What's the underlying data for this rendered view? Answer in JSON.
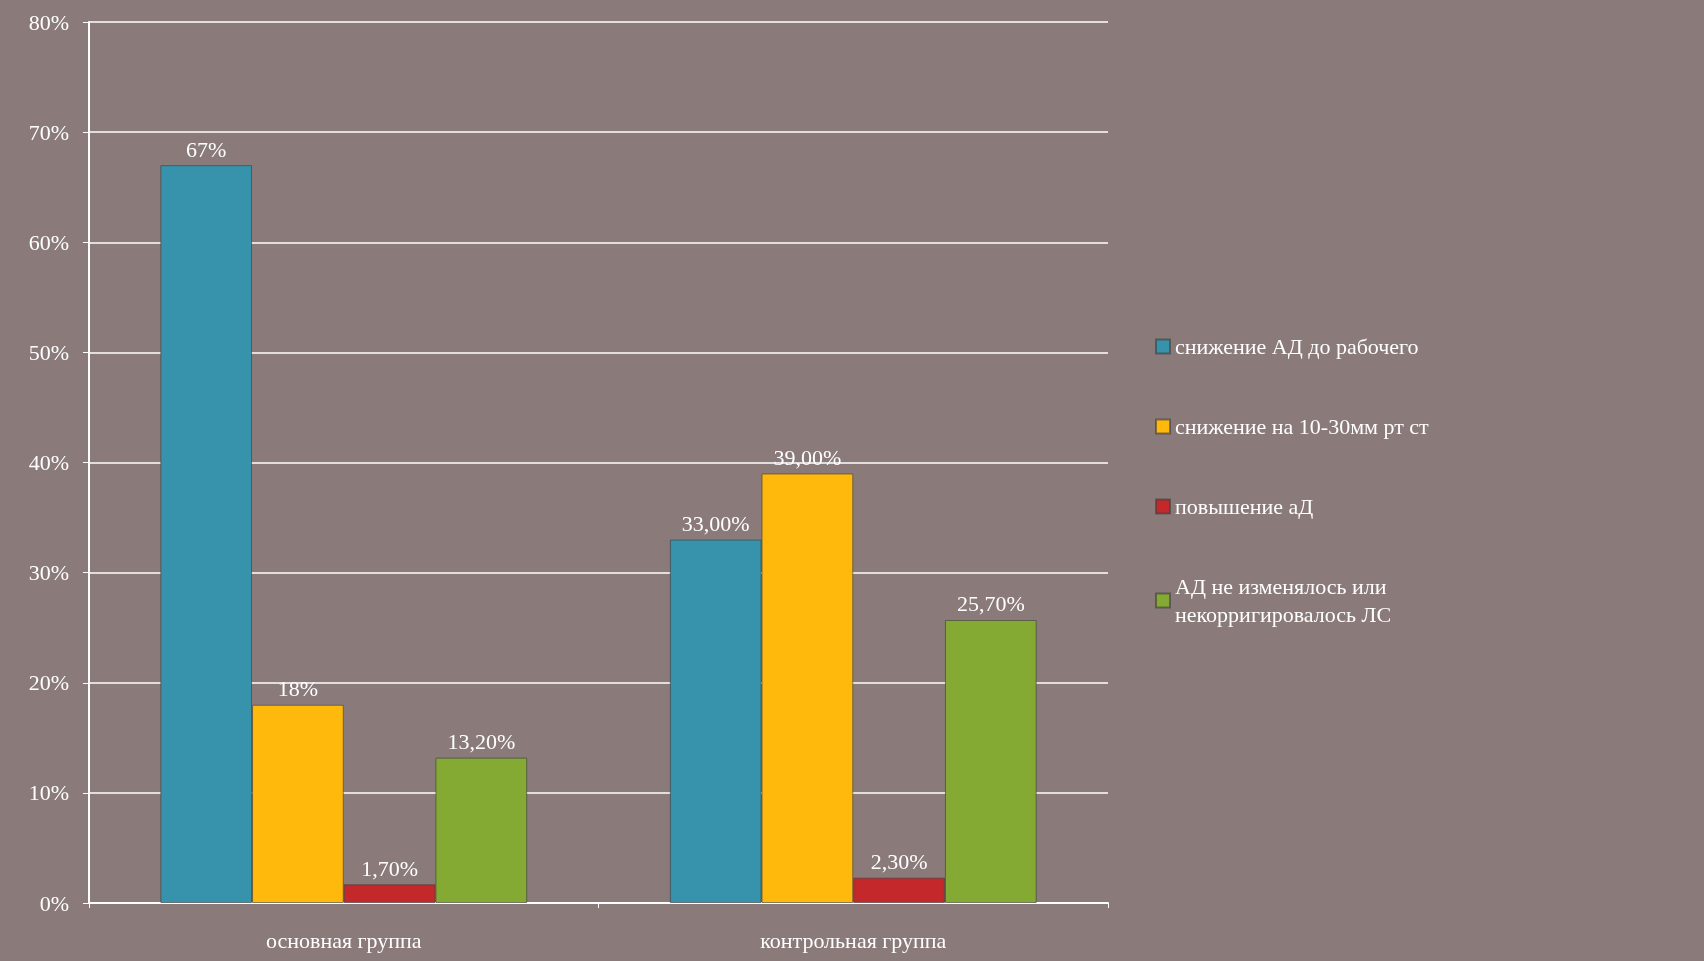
{
  "chart_data": {
    "type": "bar",
    "categories": [
      "основная группа",
      "контрольная группа"
    ],
    "series": [
      {
        "name": "снижение АД до рабочего",
        "color": "#3793ab",
        "values": [
          67,
          33
        ],
        "value_labels": [
          "67%",
          "33,00%"
        ]
      },
      {
        "name": "снижение на 10-30мм рт ст",
        "color": "#ffb80c",
        "values": [
          18,
          39
        ],
        "value_labels": [
          "18%",
          "39,00%"
        ]
      },
      {
        "name": "повышение аД",
        "color": "#c5282a",
        "values": [
          1.7,
          2.3
        ],
        "value_labels": [
          "1,70%",
          "2,30%"
        ]
      },
      {
        "name": "АД не изменялось или некорригировалось ЛС",
        "color": "#84aa33",
        "values": [
          13.2,
          25.7
        ],
        "value_labels": [
          "13,20%",
          "25,70%"
        ]
      }
    ],
    "ylim": [
      0,
      80
    ],
    "yticks": [
      {
        "value": 0,
        "label": "0%"
      },
      {
        "value": 10,
        "label": "10%"
      },
      {
        "value": 20,
        "label": "20%"
      },
      {
        "value": 30,
        "label": "30%"
      },
      {
        "value": 40,
        "label": "40%"
      },
      {
        "value": 50,
        "label": "50%"
      },
      {
        "value": 60,
        "label": "60%"
      },
      {
        "value": 70,
        "label": "70%"
      },
      {
        "value": 80,
        "label": "80%"
      }
    ],
    "grid": "y",
    "legend": "right"
  }
}
